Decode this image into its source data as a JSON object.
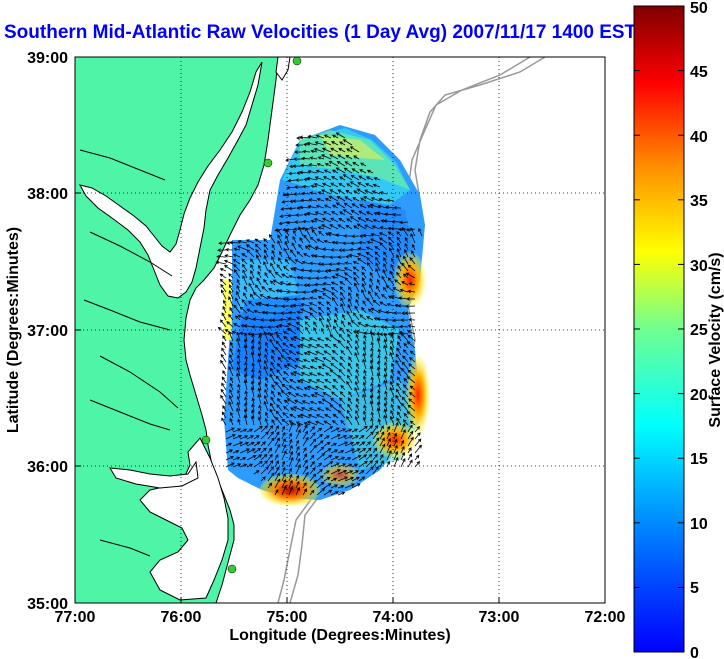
{
  "title": "Southern Mid-Atlantic Raw Velocities (1 Day Avg) 2007/11/17 1400 EST",
  "xlabel": "Longitude (Degrees:Minutes)",
  "ylabel": "Latitude (Degrees:Minutes)",
  "colorbar_label": "Surface Velocity (cm/s)",
  "x_ticks": [
    "77:00",
    "76:00",
    "75:00",
    "74:00",
    "73:00",
    "72:00"
  ],
  "y_ticks": [
    "39:00",
    "38:00",
    "37:00",
    "36:00",
    "35:00"
  ],
  "colorbar_ticks": [
    "0",
    "5",
    "10",
    "15",
    "20",
    "25",
    "30",
    "35",
    "40",
    "45",
    "50"
  ],
  "colors": {
    "land": "#4ef5a6",
    "ocean": "#ffffff",
    "coastline": "#000000",
    "bathymetry": "#999999",
    "title": "#0000ff",
    "site_marker": "#32cd32"
  },
  "extent": {
    "lon_min": -77,
    "lon_max": -72,
    "lat_min": 35,
    "lat_max": 39
  },
  "colorbar_range": [
    0,
    50
  ],
  "grid": "dotted",
  "vector_field": "black arrows, surface current direction",
  "colormap": "jet"
}
